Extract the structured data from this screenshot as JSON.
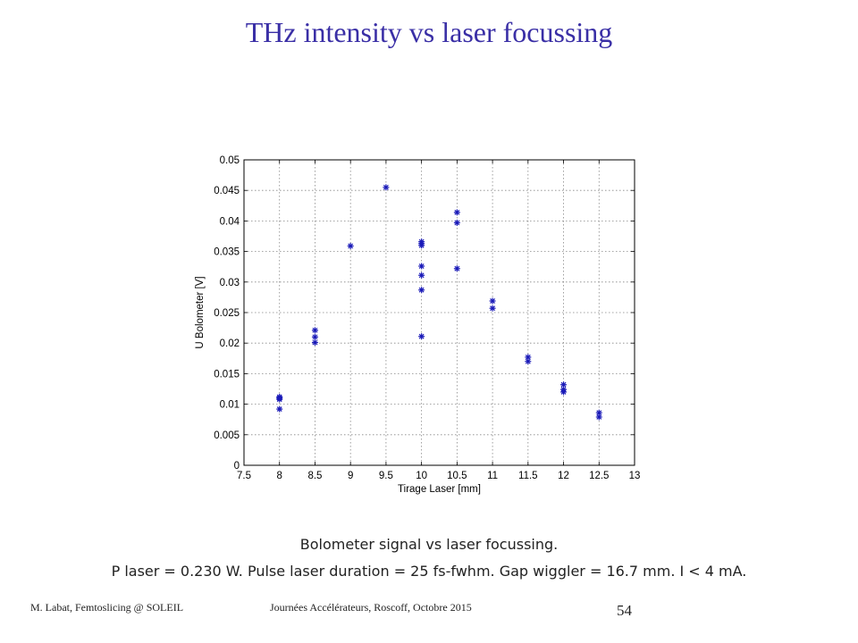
{
  "slide": {
    "title": "THz intensity vs laser focussing",
    "caption_line1": "Bolometer  signal vs laser focussing.",
    "caption_line2": "P laser = 0.230 W. Pulse laser duration = 25 fs-fwhm. Gap wiggler = 16.7 mm. I < 4 mA.",
    "footer_left": "M. Labat, Femtoslicing @ SOLEIL",
    "footer_center": "Journées Accélérateurs, Roscoff, Octobre 2015",
    "page_number": "54"
  },
  "chart_data": {
    "type": "scatter",
    "title": "",
    "xlabel": "Tirage Laser [mm]",
    "ylabel": "U Bolometer [V]",
    "xlim": [
      7.5,
      13
    ],
    "ylim": [
      0,
      0.05
    ],
    "xticks": [
      "7.5",
      "8",
      "8.5",
      "9",
      "9.5",
      "10",
      "10.5",
      "11",
      "11.5",
      "12",
      "12.5",
      "13"
    ],
    "yticks": [
      "0",
      "0.005",
      "0.01",
      "0.015",
      "0.02",
      "0.025",
      "0.03",
      "0.035",
      "0.04",
      "0.045",
      "0.05"
    ],
    "grid": true,
    "marker": "asterisk",
    "color": "#1a1ab8",
    "points": [
      {
        "x": 8,
        "y": 0.0112
      },
      {
        "x": 8,
        "y": 0.011
      },
      {
        "x": 8,
        "y": 0.0108
      },
      {
        "x": 8,
        "y": 0.0092
      },
      {
        "x": 8.5,
        "y": 0.0221
      },
      {
        "x": 8.5,
        "y": 0.021
      },
      {
        "x": 8.5,
        "y": 0.0201
      },
      {
        "x": 9,
        "y": 0.0359
      },
      {
        "x": 9.5,
        "y": 0.0455
      },
      {
        "x": 10,
        "y": 0.0366
      },
      {
        "x": 10,
        "y": 0.0363
      },
      {
        "x": 10,
        "y": 0.036
      },
      {
        "x": 10,
        "y": 0.0326
      },
      {
        "x": 10,
        "y": 0.0311
      },
      {
        "x": 10,
        "y": 0.0287
      },
      {
        "x": 10,
        "y": 0.0211
      },
      {
        "x": 10.5,
        "y": 0.0414
      },
      {
        "x": 10.5,
        "y": 0.0397
      },
      {
        "x": 10.5,
        "y": 0.0322
      },
      {
        "x": 11,
        "y": 0.0269
      },
      {
        "x": 11,
        "y": 0.0257
      },
      {
        "x": 11.5,
        "y": 0.0177
      },
      {
        "x": 11.5,
        "y": 0.017
      },
      {
        "x": 12,
        "y": 0.0132
      },
      {
        "x": 12,
        "y": 0.0124
      },
      {
        "x": 12,
        "y": 0.012
      },
      {
        "x": 12.5,
        "y": 0.0086
      },
      {
        "x": 12.5,
        "y": 0.0079
      }
    ]
  }
}
